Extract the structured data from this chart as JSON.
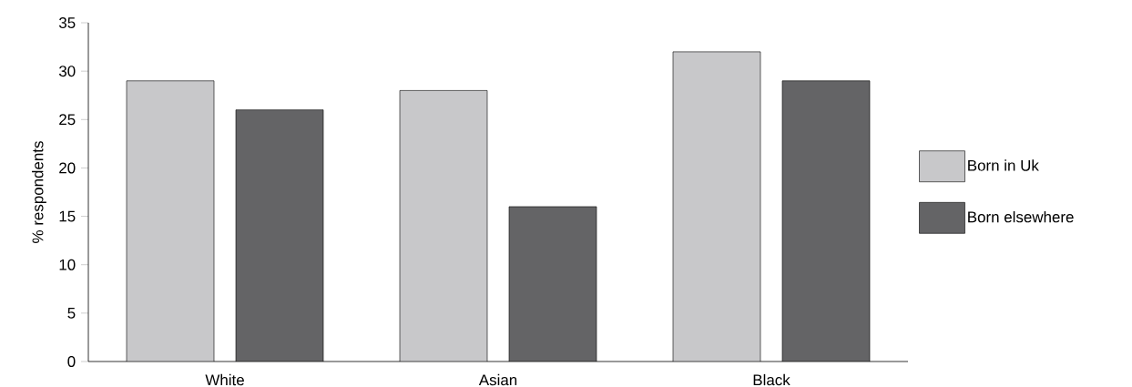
{
  "chart_data": {
    "type": "bar",
    "ylabel": "% respondents",
    "categories": [
      "White",
      "Asian",
      "Black"
    ],
    "series": [
      {
        "name": "Born in Uk",
        "color": "#c8c8ca",
        "values": [
          29,
          28,
          32
        ]
      },
      {
        "name": "Born elsewhere",
        "color": "#646466",
        "values": [
          26,
          16,
          29
        ]
      }
    ],
    "ylim": [
      0,
      35
    ],
    "yticks": [
      0,
      5,
      10,
      15,
      20,
      25,
      30,
      35
    ],
    "legend": "right"
  }
}
